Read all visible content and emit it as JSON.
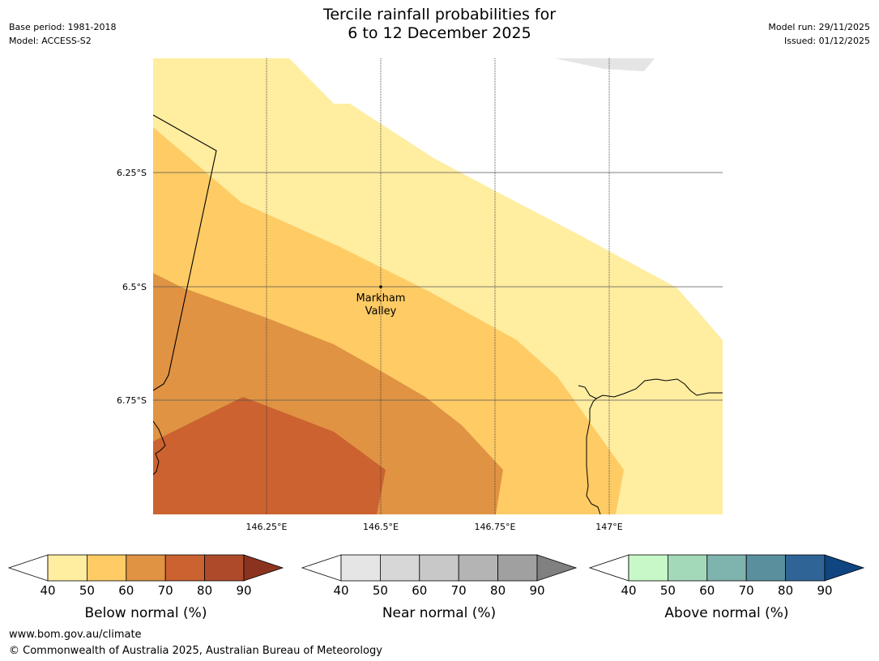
{
  "header": {
    "base_period": "Base period: 1981-2018",
    "model": "Model: ACCESS-S2",
    "title_line1": "Tercile rainfall probabilities for",
    "title_line2": "6 to 12 December 2025",
    "model_run": "Model run: 29/11/2025",
    "issued": "Issued: 01/12/2025"
  },
  "map": {
    "lat_labels": [
      "6.25°S",
      "6.5°S",
      "6.75°S"
    ],
    "lon_labels": [
      "146.25°E",
      "146.5°E",
      "146.75°E",
      "147°E"
    ],
    "place": {
      "line1": "Markham",
      "line2": "Valley"
    }
  },
  "colorbars": [
    {
      "title": "Below normal (%)",
      "ticks": [
        "40",
        "50",
        "60",
        "70",
        "80",
        "90"
      ],
      "colors": [
        "#ffeda0",
        "#fecb65",
        "#e09343",
        "#cb6230",
        "#ae4a2a",
        "#8c3320"
      ]
    },
    {
      "title": "Near normal (%)",
      "ticks": [
        "40",
        "50",
        "60",
        "70",
        "80",
        "90"
      ],
      "colors": [
        "#e5e5e5",
        "#d7d7d7",
        "#c8c8c8",
        "#b4b4b4",
        "#a0a0a0",
        "#808080"
      ]
    },
    {
      "title": "Above normal (%)",
      "ticks": [
        "40",
        "50",
        "60",
        "70",
        "80",
        "90"
      ],
      "colors": [
        "#c8f8c8",
        "#a3d8b8",
        "#7fb3ae",
        "#5a8f9e",
        "#2f6596",
        "#0f4580"
      ]
    }
  ],
  "footer": {
    "url": "www.bom.gov.au/climate",
    "copyright": "© Commonwealth of Australia 2025, Australian Bureau of Meteorology"
  }
}
